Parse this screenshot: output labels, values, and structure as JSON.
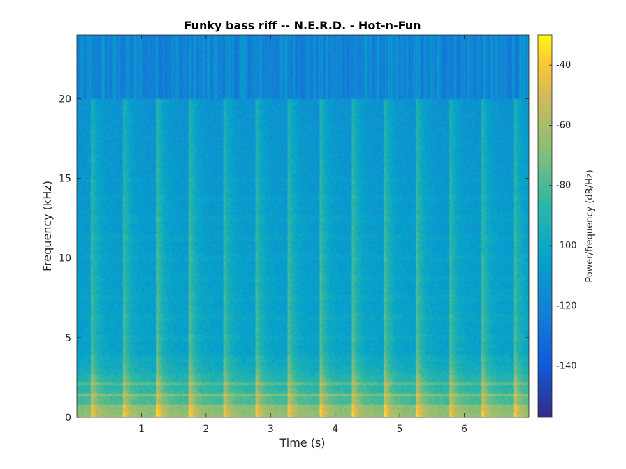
{
  "chart_data": {
    "type": "heatmap",
    "title": "Funky bass riff -- N.E.R.D. - Hot-n-Fun",
    "xlabel": "Time (s)",
    "ylabel": "Frequency (kHz)",
    "colorbar_label": "Power/frequency (dB/Hz)",
    "xlim": [
      0,
      7
    ],
    "ylim": [
      0,
      24
    ],
    "clim": [
      -157,
      -30
    ],
    "x_ticks": [
      1,
      2,
      3,
      4,
      5,
      6
    ],
    "x_tick_labels": [
      "1",
      "2",
      "3",
      "4",
      "5",
      "6"
    ],
    "y_ticks": [
      0,
      5,
      10,
      15,
      20
    ],
    "y_tick_labels": [
      "0",
      "5",
      "10",
      "15",
      "20"
    ],
    "colorbar_ticks": [
      -140,
      -120,
      -100,
      -80,
      -60,
      -40
    ],
    "colorbar_tick_labels": [
      "-140",
      "-120",
      "-100",
      "-80",
      "-60",
      "-40"
    ],
    "colormap": "parula",
    "band_cutoff_khz": 20,
    "onsets_s": [
      0.22,
      0.72,
      1.25,
      1.75,
      2.27,
      2.77,
      3.27,
      3.77,
      4.27,
      4.77,
      5.27,
      5.77,
      6.27,
      6.77
    ],
    "harmonic_lines_khz": [
      0.7,
      1.4,
      2.1
    ],
    "grid": false,
    "legend": "none"
  }
}
